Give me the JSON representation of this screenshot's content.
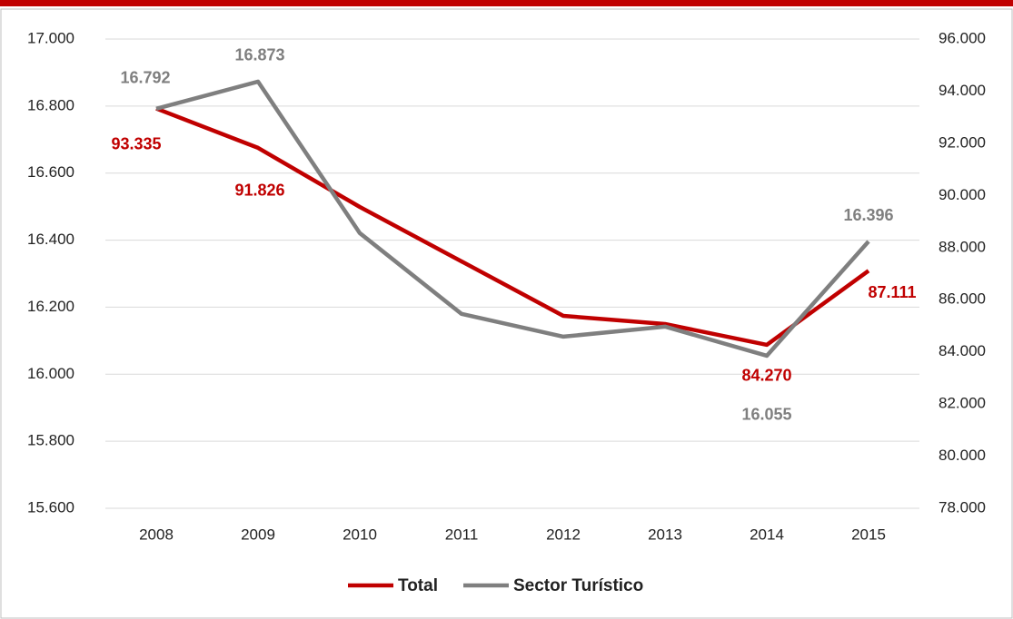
{
  "chart_data": {
    "type": "line",
    "categories": [
      "2008",
      "2009",
      "2010",
      "2011",
      "2012",
      "2013",
      "2014",
      "2015"
    ],
    "series": [
      {
        "name": "Total",
        "color": "#c00000",
        "axis": "y2",
        "values": [
          93335,
          91826,
          89559,
          87470,
          85381,
          85068,
          84270,
          87111
        ],
        "value_labels": [
          "93.335",
          "91.826",
          null,
          null,
          null,
          null,
          "84.270",
          "87.111"
        ]
      },
      {
        "name": "Sector Turístico",
        "color": "#7f7f7f",
        "axis": "y",
        "values": [
          16792,
          16873,
          16421,
          16180,
          16112,
          16142,
          16055,
          16396
        ],
        "value_labels": [
          "16.792",
          "16.873",
          null,
          null,
          null,
          null,
          "16.055",
          "16.396"
        ]
      }
    ],
    "ylim": [
      15600,
      17000
    ],
    "yticks": [
      {
        "value": 15600,
        "label": "15.600"
      },
      {
        "value": 15800,
        "label": "15.800"
      },
      {
        "value": 16000,
        "label": "16.000"
      },
      {
        "value": 16200,
        "label": "16.200"
      },
      {
        "value": 16400,
        "label": "16.400"
      },
      {
        "value": 16600,
        "label": "16.600"
      },
      {
        "value": 16800,
        "label": "16.800"
      },
      {
        "value": 17000,
        "label": "17.000"
      }
    ],
    "y2lim": [
      78000,
      96000
    ],
    "y2ticks": [
      {
        "value": 78000,
        "label": "78.000"
      },
      {
        "value": 80000,
        "label": "80.000"
      },
      {
        "value": 82000,
        "label": "82.000"
      },
      {
        "value": 84000,
        "label": "84.000"
      },
      {
        "value": 86000,
        "label": "86.000"
      },
      {
        "value": 88000,
        "label": "88.000"
      },
      {
        "value": 90000,
        "label": "90.000"
      },
      {
        "value": 92000,
        "label": "92.000"
      },
      {
        "value": 94000,
        "label": "94.000"
      },
      {
        "value": 96000,
        "label": "96.000"
      }
    ],
    "grid": true,
    "legend": "bottom"
  }
}
